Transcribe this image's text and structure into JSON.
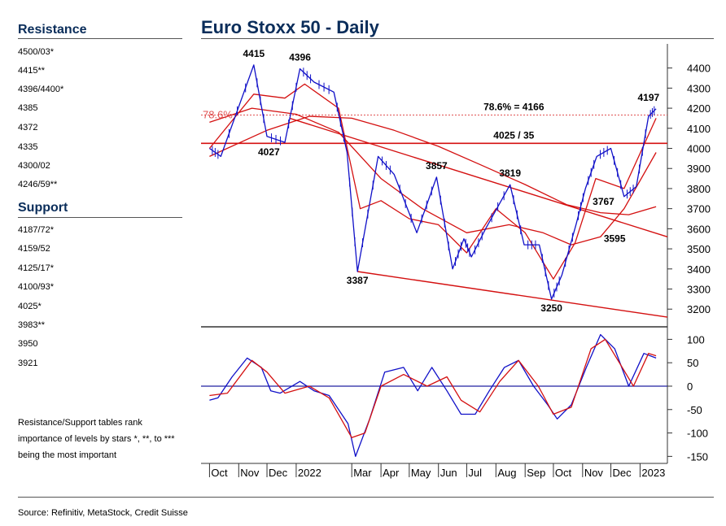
{
  "sidebar": {
    "resistance_heading": "Resistance",
    "resistance_levels": [
      "4500/03*",
      "4415**",
      "4396/4400*",
      "4385",
      "4372",
      "4335",
      "4300/02",
      "4246/59**"
    ],
    "support_heading": "Support",
    "support_levels": [
      "4187/72*",
      "4159/52",
      "4125/17*",
      "4100/93*",
      "4025*",
      "3983**",
      "3950",
      "3921"
    ],
    "note": "Resistance/Support tables rank importance of levels by stars *, **, to *** being the most important"
  },
  "chart_title": "Euro Stoxx 50 - Daily",
  "source": "Source: Refinitiv, MetaStock, Credit Suisse",
  "colors": {
    "title": "#0a2d5a",
    "price": "#1010c8",
    "ma": "#d41010",
    "fib": "#e05050",
    "zero": "#2020a0"
  },
  "chart_data": [
    {
      "type": "line",
      "title": "Euro Stoxx 50 - Daily",
      "ylim": [
        3120,
        4520
      ],
      "y_ticks": [
        3200,
        3300,
        3400,
        3500,
        3600,
        3700,
        3800,
        3900,
        4000,
        4100,
        4200,
        4300,
        4400
      ],
      "x_month_labels": [
        "Oct",
        "Nov",
        "Dec",
        "2022",
        "Mar",
        "Apr",
        "May",
        "Jun",
        "Jul",
        "Aug",
        "Sep",
        "Oct",
        "Nov",
        "Dec",
        "2023"
      ],
      "series": [
        {
          "x": [
            "2021-10-01",
            "2021-10-13",
            "2021-11-17",
            "2021-12-01",
            "2021-12-20",
            "2022-01-05",
            "2022-01-20",
            "2022-02-10",
            "2022-02-24",
            "2022-03-07",
            "2022-03-29",
            "2022-04-15",
            "2022-05-09",
            "2022-05-30",
            "2022-06-16",
            "2022-06-28",
            "2022-07-06",
            "2022-07-21",
            "2022-08-16",
            "2022-08-31",
            "2022-09-16",
            "2022-09-29",
            "2022-10-10",
            "2022-10-25",
            "2022-11-04",
            "2022-11-16",
            "2022-12-01",
            "2022-12-15",
            "2022-12-28",
            "2023-01-10",
            "2023-01-18"
          ],
          "y": [
            4000,
            3960,
            4415,
            4060,
            4030,
            4396,
            4330,
            4280,
            3980,
            3387,
            3960,
            3870,
            3580,
            3857,
            3400,
            3550,
            3460,
            3600,
            3819,
            3520,
            3520,
            3250,
            3370,
            3620,
            3800,
            3960,
            4000,
            3760,
            3810,
            4160,
            4197
          ]
        },
        {
          "name": "",
          "x": [
            "2021-10-01",
            "2021-11-17",
            "2021-12-20",
            "2022-01-10",
            "2022-02-15",
            "2022-03-10",
            "2022-04-01",
            "2022-05-01",
            "2022-06-01",
            "2022-07-01",
            "2022-08-01",
            "2022-09-01",
            "2022-10-01",
            "2022-10-24",
            "2022-11-15",
            "2022-12-15",
            "2023-01-18"
          ],
          "y": [
            4000,
            4270,
            4250,
            4320,
            4200,
            3700,
            3740,
            3650,
            3620,
            3480,
            3700,
            3580,
            3350,
            3530,
            3850,
            3800,
            4150
          ]
        },
        {
          "name": "",
          "x": [
            "2021-10-01",
            "2021-11-15",
            "2022-01-01",
            "2022-02-15",
            "2022-04-01",
            "2022-05-15",
            "2022-07-01",
            "2022-08-15",
            "2022-09-20",
            "2022-10-20",
            "2022-11-20",
            "2022-12-15",
            "2023-01-18"
          ],
          "y": [
            4130,
            4200,
            4170,
            4080,
            3850,
            3700,
            3580,
            3620,
            3580,
            3520,
            3560,
            3700,
            3980
          ]
        },
        {
          "name": "",
          "x": [
            "2021-10-01",
            "2021-12-01",
            "2022-01-15",
            "2022-03-01",
            "2022-04-15",
            "2022-06-01",
            "2022-07-15",
            "2022-09-01",
            "2022-10-15",
            "2022-11-20",
            "2022-12-20",
            "2023-01-18"
          ],
          "y": [
            3960,
            4090,
            4160,
            4150,
            4090,
            4010,
            3920,
            3820,
            3720,
            3680,
            3670,
            3710
          ]
        }
      ],
      "annotations": [
        {
          "text": "4415",
          "x": "2021-11-17",
          "y": 4415
        },
        {
          "text": "4396",
          "x": "2022-01-05",
          "y": 4396
        },
        {
          "text": "4027",
          "x": "2021-12-03",
          "y": 4027
        },
        {
          "text": "3387",
          "x": "2022-03-07",
          "y": 3387
        },
        {
          "text": "3857",
          "x": "2022-05-30",
          "y": 3857
        },
        {
          "text": "3819",
          "x": "2022-08-16",
          "y": 3819
        },
        {
          "text": "3250",
          "x": "2022-09-29",
          "y": 3250
        },
        {
          "text": "3767",
          "x": "2022-11-18",
          "y": 3767
        },
        {
          "text": "3595",
          "x": "2022-12-05",
          "y": 3595
        },
        {
          "text": "4197",
          "x": "2023-01-10",
          "y": 4197
        },
        {
          "text": "78.6% = 4166",
          "x": "2022-08-20",
          "y": 4166
        },
        {
          "text": "4025 / 35",
          "x": "2022-08-20",
          "y": 4025
        },
        {
          "text": "78.6%",
          "x": "2021-10-01",
          "y": 4166
        }
      ],
      "horizontal_levels": [
        4166,
        4025
      ],
      "trendlines": [
        {
          "x": [
            "2021-12-25",
            "2023-01-30"
          ],
          "y": [
            4150,
            3560
          ]
        },
        {
          "x": [
            "2022-03-07",
            "2023-01-30"
          ],
          "y": [
            3387,
            3160
          ]
        }
      ]
    },
    {
      "type": "line",
      "ylim": [
        -165,
        125
      ],
      "y_ticks": [
        -150,
        -100,
        -50,
        0,
        50,
        100
      ],
      "series": [
        {
          "name": "",
          "x": [
            "2021-10-01",
            "2021-10-10",
            "2021-10-25",
            "2021-11-10",
            "2021-11-25",
            "2021-12-05",
            "2021-12-15",
            "2022-01-05",
            "2022-01-20",
            "2022-02-05",
            "2022-02-25",
            "2022-03-05",
            "2022-03-20",
            "2022-04-05",
            "2022-04-25",
            "2022-05-10",
            "2022-05-25",
            "2022-06-10",
            "2022-06-25",
            "2022-07-10",
            "2022-07-25",
            "2022-08-10",
            "2022-08-25",
            "2022-09-10",
            "2022-09-25",
            "2022-10-05",
            "2022-10-20",
            "2022-11-05",
            "2022-11-20",
            "2022-12-05",
            "2022-12-20",
            "2023-01-05",
            "2023-01-18"
          ],
          "y": [
            -30,
            -25,
            20,
            60,
            40,
            -10,
            -15,
            10,
            -10,
            -20,
            -80,
            -150,
            -70,
            30,
            40,
            -10,
            40,
            -10,
            -60,
            -60,
            -10,
            40,
            55,
            0,
            -40,
            -70,
            -40,
            40,
            110,
            80,
            0,
            70,
            60
          ]
        },
        {
          "name": "",
          "x": [
            "2021-10-01",
            "2021-10-20",
            "2021-11-15",
            "2021-12-01",
            "2021-12-20",
            "2022-01-15",
            "2022-02-05",
            "2022-03-01",
            "2022-03-15",
            "2022-04-01",
            "2022-04-25",
            "2022-05-20",
            "2022-06-10",
            "2022-06-25",
            "2022-07-15",
            "2022-08-05",
            "2022-08-25",
            "2022-09-15",
            "2022-10-01",
            "2022-10-20",
            "2022-11-10",
            "2022-11-25",
            "2022-12-10",
            "2022-12-25",
            "2023-01-10",
            "2023-01-18"
          ],
          "y": [
            -20,
            -15,
            55,
            30,
            -15,
            0,
            -25,
            -110,
            -100,
            0,
            25,
            0,
            20,
            -30,
            -55,
            10,
            55,
            0,
            -60,
            -45,
            80,
            100,
            50,
            0,
            70,
            65
          ]
        }
      ]
    }
  ]
}
